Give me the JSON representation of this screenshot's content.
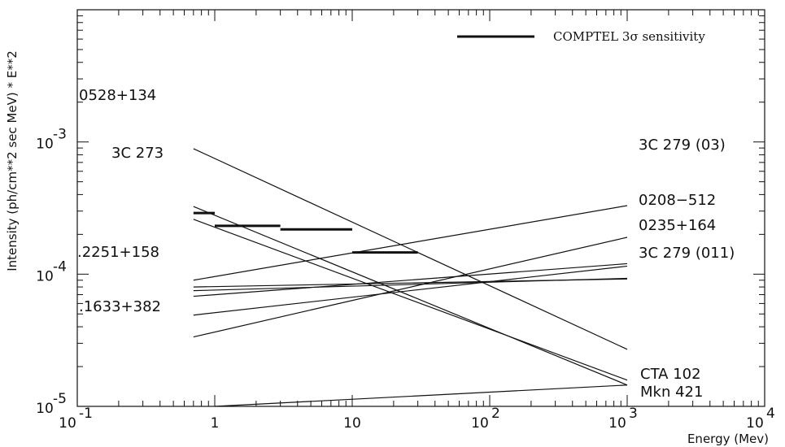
{
  "chart_data": {
    "type": "line",
    "xlabel": "Energy (Mev)",
    "ylabel": "Intensity (ph/cm**2 sec MeV) * E**2",
    "x_scale": "log",
    "y_scale": "log",
    "xlim": [
      0.1,
      10000
    ],
    "ylim": [
      1e-05,
      0.01
    ],
    "x_ticks": [
      {
        "value": 0.1,
        "base": "10",
        "exp": "-1"
      },
      {
        "value": 1,
        "text": "1"
      },
      {
        "value": 10,
        "text": "10"
      },
      {
        "value": 100,
        "base": "10",
        "exp": "2"
      },
      {
        "value": 1000,
        "base": "10",
        "exp": "3"
      },
      {
        "value": 10000,
        "base": "10",
        "exp": "4"
      }
    ],
    "y_ticks": [
      {
        "value": 1e-05,
        "base": "10",
        "exp": "-5"
      },
      {
        "value": 0.0001,
        "base": "10",
        "exp": "-4"
      },
      {
        "value": 0.001,
        "base": "10",
        "exp": "-3"
      }
    ],
    "grid": false,
    "legend": {
      "position": "top-right",
      "entries": [
        {
          "label": "COMPTEL 3σ sensitivity",
          "style": "thick-segment"
        }
      ]
    },
    "series": [
      {
        "name": "0528+134",
        "x": [
          0.7,
          1000
        ],
        "y": [
          0.00089,
          2.7e-05
        ]
      },
      {
        "name": "3C 273",
        "x": [
          0.7,
          1000
        ],
        "y": [
          0.000325,
          1.45e-05
        ]
      },
      {
        "name": "3C 279 (03)",
        "x": [
          0.7,
          1000
        ],
        "y": [
          9e-05,
          0.00033
        ]
      },
      {
        "name": "0208-512",
        "x": [
          0.7,
          1000
        ],
        "y": [
          3.35e-05,
          0.00019
        ]
      },
      {
        "name": "0235+164",
        "x": [
          0.7,
          1000
        ],
        "y": [
          6.8e-05,
          0.00012
        ]
      },
      {
        "name": "3C 279 (011)",
        "x": [
          0.7,
          1000
        ],
        "y": [
          8e-05,
          9.2e-05
        ]
      },
      {
        "name": "2251+158",
        "x": [
          0.7,
          1000
        ],
        "y": [
          7.5e-05,
          9.3e-05
        ]
      },
      {
        "name": "1633+382",
        "x": [
          0.7,
          1000
        ],
        "y": [
          4.9e-05,
          0.000115
        ]
      },
      {
        "name": "CTA 102",
        "x": [
          0.7,
          1000
        ],
        "y": [
          0.00026,
          1.58e-05
        ]
      },
      {
        "name": "Mkn 421",
        "x": [
          1,
          1000
        ],
        "y": [
          1e-05,
          1.45e-05
        ]
      }
    ],
    "sensitivity_segments": [
      {
        "x": [
          0.7,
          1.0
        ],
        "y": 0.00029
      },
      {
        "x": [
          1.0,
          3.0
        ],
        "y": 0.000232
      },
      {
        "x": [
          3.0,
          10.0
        ],
        "y": 0.000218
      },
      {
        "x": [
          10.0,
          30.0
        ],
        "y": 0.000146
      }
    ],
    "labels": [
      "0528+134",
      "3C 273",
      ".2251+158",
      ".1633+382",
      "3C 279 (03)",
      "0208−512",
      "0235+164",
      "3C 279 (011)",
      "CTA 102",
      "Mkn 421"
    ]
  }
}
